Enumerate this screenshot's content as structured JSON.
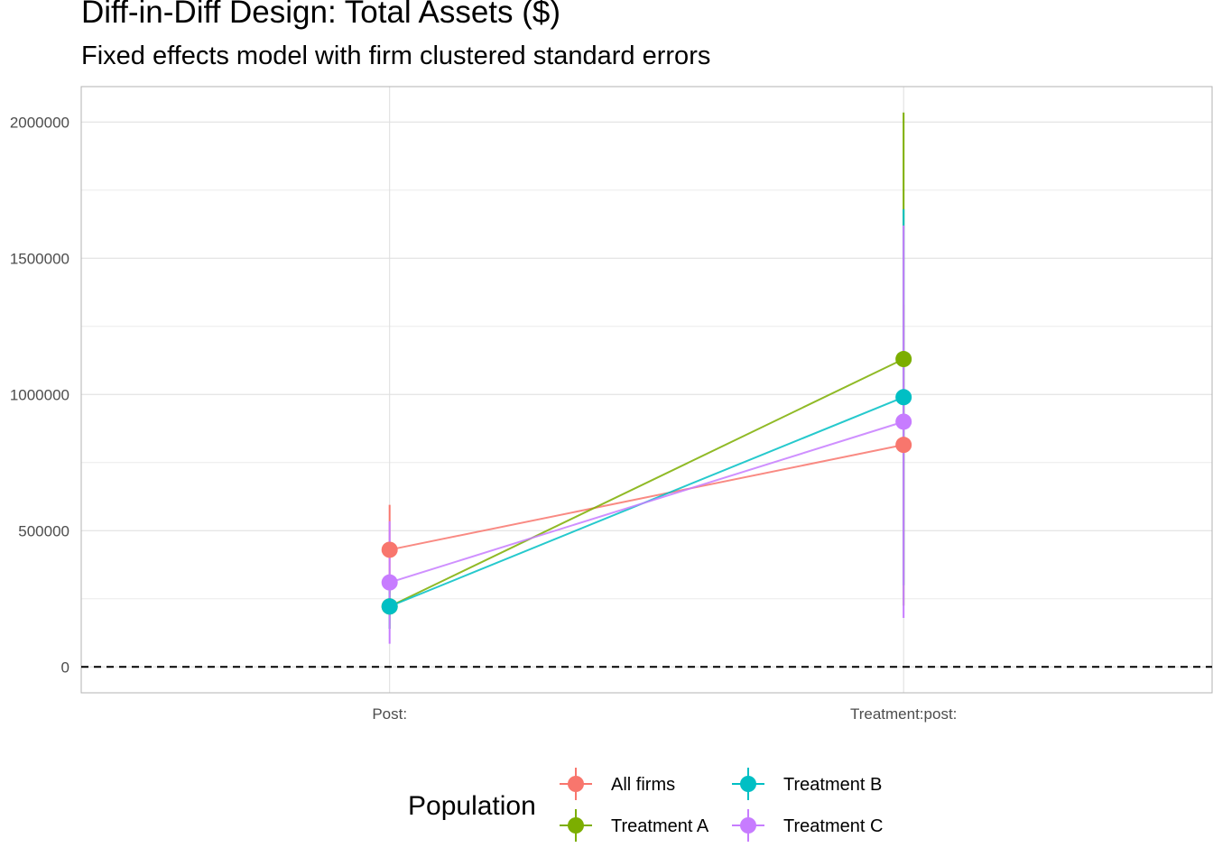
{
  "chart_data": {
    "type": "line",
    "title": "Diff-in-Diff Design: Total Assets ($)",
    "subtitle": "Fixed effects model with firm clustered standard errors",
    "xlabel": "",
    "ylabel": "",
    "categories": [
      "Post:",
      "Treatment:post:"
    ],
    "y_ticks": [
      "0",
      "500000",
      "1000000",
      "1500000",
      "2000000"
    ],
    "ylim": [
      -95000,
      2130000
    ],
    "reference_line": {
      "y": 0,
      "style": "dashed"
    },
    "grid": true,
    "legend": {
      "title": "Population",
      "position": "bottom"
    },
    "series": [
      {
        "name": "All firms",
        "color": "#F8766D",
        "values": [
          430000,
          815000
        ],
        "lower": [
          270000,
          300000
        ],
        "upper": [
          595000,
          1330000
        ]
      },
      {
        "name": "Treatment A",
        "color": "#7CAE00",
        "values": [
          222000,
          1130000
        ],
        "lower": [
          140000,
          225000
        ],
        "upper": [
          305000,
          2035000
        ]
      },
      {
        "name": "Treatment B",
        "color": "#00BFC4",
        "values": [
          222000,
          990000
        ],
        "lower": [
          140000,
          300000
        ],
        "upper": [
          305000,
          1680000
        ]
      },
      {
        "name": "Treatment C",
        "color": "#C77CFF",
        "values": [
          310000,
          900000
        ],
        "lower": [
          85000,
          180000
        ],
        "upper": [
          535000,
          1620000
        ]
      }
    ]
  }
}
